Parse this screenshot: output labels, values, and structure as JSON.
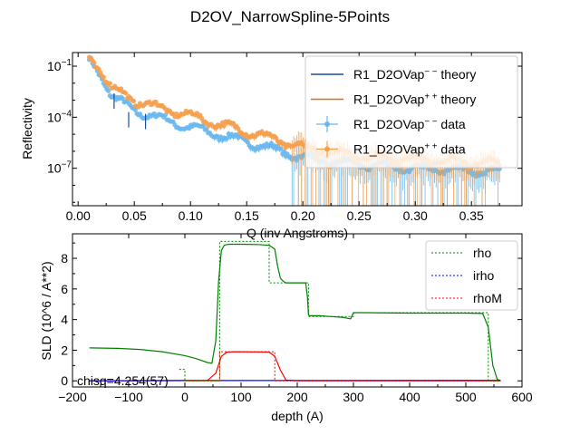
{
  "figure_title": "D2OV_NarrowSpline-5Points",
  "chart_data": [
    {
      "type": "scatter",
      "name": "reflectivity",
      "title": "",
      "xlabel": "Q (inv Angstroms)",
      "ylabel": "Reflectivity",
      "xlim": [
        -0.005,
        0.395
      ],
      "ylog_range": [
        -9.2,
        -0.2
      ],
      "xticks": [
        0.0,
        0.05,
        0.1,
        0.15,
        0.2,
        0.25,
        0.3,
        0.35
      ],
      "xtick_labels": [
        "0.00",
        "0.05",
        "0.10",
        "0.15",
        "0.20",
        "0.25",
        "0.30",
        "0.35"
      ],
      "yticks": [
        {
          "exp": -1,
          "base": "10",
          "sup": "−1"
        },
        {
          "exp": -4,
          "base": "10",
          "sup": "−4"
        },
        {
          "exp": -7,
          "base": "10",
          "sup": "−7"
        }
      ],
      "legend": {
        "placement": "upper-right",
        "entries": [
          {
            "kind": "line",
            "color": "#1a4fa0",
            "label_main": "R1_D2OVap",
            "label_sup": "− −",
            "label_tail": " theory"
          },
          {
            "kind": "line",
            "color": "#d97013",
            "label_main": "R1_D2OVap",
            "label_sup": "+ +",
            "label_tail": " theory"
          },
          {
            "kind": "marker",
            "color": "#6ab8ee",
            "label_main": "R1_D2OVap",
            "label_sup": "− −",
            "label_tail": " data"
          },
          {
            "kind": "marker",
            "color": "#f5a04f",
            "label_main": "R1_D2OVap",
            "label_sup": "+ +",
            "label_tail": " data"
          }
        ]
      },
      "series": [
        {
          "name": "R1_D2OVap−− data",
          "color": "#6ab8ee",
          "q_range": [
            0.01,
            0.375
          ],
          "log_points": [
            [
              0.01,
              -0.7
            ],
            [
              0.02,
              -1.5
            ],
            [
              0.03,
              -2.7
            ],
            [
              0.04,
              -3.2
            ],
            [
              0.05,
              -3.6
            ],
            [
              0.07,
              -4.0
            ],
            [
              0.1,
              -4.6
            ],
            [
              0.13,
              -5.1
            ],
            [
              0.16,
              -5.6
            ],
            [
              0.2,
              -6.4
            ],
            [
              0.25,
              -6.8
            ],
            [
              0.3,
              -7.0
            ],
            [
              0.375,
              -7.2
            ]
          ]
        },
        {
          "name": "R1_D2OVap++ data",
          "color": "#f5a04f",
          "q_range": [
            0.01,
            0.375
          ],
          "log_points": [
            [
              0.01,
              -0.5
            ],
            [
              0.02,
              -1.2
            ],
            [
              0.03,
              -2.3
            ],
            [
              0.05,
              -3.0
            ],
            [
              0.07,
              -3.4
            ],
            [
              0.1,
              -3.9
            ],
            [
              0.13,
              -4.5
            ],
            [
              0.16,
              -5.0
            ],
            [
              0.2,
              -5.8
            ],
            [
              0.25,
              -6.3
            ],
            [
              0.3,
              -6.5
            ],
            [
              0.375,
              -6.7
            ]
          ]
        }
      ]
    },
    {
      "type": "line",
      "name": "sld_profile",
      "title": "",
      "xlabel": "depth (A)",
      "ylabel": "SLD (10^6 / A**2)",
      "xlim": [
        -200,
        600
      ],
      "ylim": [
        -0.4,
        9.6
      ],
      "xticks": [
        -200,
        -100,
        0,
        100,
        200,
        300,
        400,
        500,
        600
      ],
      "xtick_labels": [
        "−200",
        "−100",
        "0",
        "100",
        "200",
        "300",
        "400",
        "500",
        "600"
      ],
      "yticks": [
        0,
        2,
        4,
        6,
        8
      ],
      "ytick_labels": [
        "0",
        "2",
        "4",
        "6",
        "8"
      ],
      "annotation": "chisq=4.254(57)",
      "legend": {
        "placement": "upper-right",
        "entries": [
          {
            "label": "rho",
            "color": "#008000"
          },
          {
            "label": "irho",
            "color": "#0000ff"
          },
          {
            "label": "rhoM",
            "color": "#ff0000"
          }
        ]
      },
      "series": [
        {
          "name": "rho",
          "color": "#008000",
          "x": [
            -170,
            -120,
            -80,
            -40,
            0,
            20,
            40,
            48,
            55,
            60,
            65,
            70,
            75,
            80,
            100,
            130,
            150,
            160,
            165,
            170,
            175,
            180,
            195,
            215,
            218,
            220,
            222,
            225,
            240,
            260,
            280,
            295,
            298,
            300,
            302,
            320,
            400,
            500,
            530,
            540,
            548,
            556,
            562
          ],
          "y": [
            2.15,
            2.12,
            2.05,
            1.9,
            1.65,
            1.45,
            1.2,
            1.15,
            2.6,
            6.5,
            8.5,
            8.85,
            8.9,
            8.92,
            8.92,
            8.9,
            8.85,
            8.6,
            7.5,
            6.7,
            6.5,
            6.4,
            6.4,
            6.4,
            5.5,
            4.3,
            4.25,
            4.25,
            4.25,
            4.2,
            4.15,
            4.05,
            4.3,
            4.45,
            4.45,
            4.45,
            4.42,
            4.42,
            4.4,
            3.5,
            1.0,
            0.1,
            0.0
          ]
        },
        {
          "name": "rhoM",
          "color": "#ff0000",
          "x": [
            -170,
            40,
            55,
            65,
            75,
            90,
            150,
            160,
            170,
            180,
            200,
            562
          ],
          "y": [
            0.0,
            0.02,
            0.5,
            1.6,
            1.88,
            1.9,
            1.88,
            1.6,
            0.7,
            0.05,
            0.0,
            0.0
          ]
        },
        {
          "name": "irho",
          "color": "#0000ff",
          "x": [
            -170,
            0,
            562
          ],
          "y": [
            0.0,
            0.02,
            0.03
          ]
        },
        {
          "name": "rho (slab)",
          "color": "#008000",
          "dashed": true,
          "x": [
            -10,
            0,
            0,
            62,
            62,
            150,
            150,
            180,
            180,
            220,
            220,
            300,
            300,
            540,
            540,
            562
          ],
          "y": [
            0.75,
            0.75,
            0.0,
            0.0,
            9.1,
            9.1,
            6.4,
            6.4,
            6.4,
            6.4,
            4.2,
            4.2,
            4.45,
            4.45,
            0.0,
            0.0
          ]
        },
        {
          "name": "rhoM (slab)",
          "color": "#ff0000",
          "dashed": true,
          "x": [
            0,
            62,
            62,
            160,
            160,
            562
          ],
          "y": [
            0.0,
            0.0,
            1.9,
            1.9,
            0.0,
            0.0
          ]
        }
      ]
    }
  ]
}
